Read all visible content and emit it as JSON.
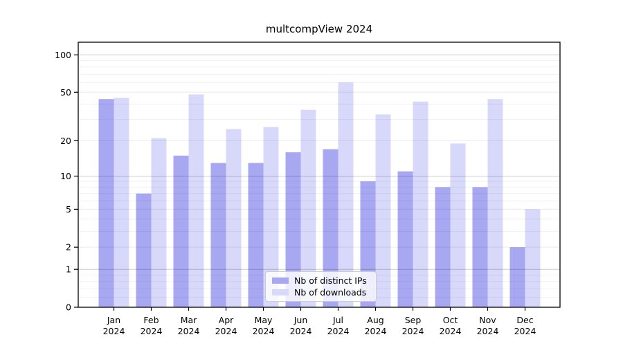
{
  "chart_data": {
    "type": "bar",
    "title": "multcompView 2024",
    "categories": [
      "Jan",
      "Feb",
      "Mar",
      "Apr",
      "May",
      "Jun",
      "Jul",
      "Aug",
      "Sep",
      "Oct",
      "Nov",
      "Dec"
    ],
    "year_label": "2024",
    "series": [
      {
        "name": "Nb of distinct IPs",
        "color": "#a8a8f2",
        "values": [
          44,
          7,
          15,
          13,
          13,
          16,
          17,
          9,
          11,
          8,
          8,
          2
        ]
      },
      {
        "name": "Nb of downloads",
        "color": "#d8d8fa",
        "values": [
          45,
          21,
          48,
          25,
          26,
          36,
          60,
          33,
          42,
          19,
          44,
          5
        ]
      }
    ],
    "xlabel": "",
    "ylabel": "",
    "yscale": "log1p",
    "ylim": [
      0,
      126
    ],
    "yticks": [
      100,
      50,
      20,
      10,
      5,
      2,
      1,
      0
    ],
    "grid": "on",
    "legend_position": "lower center",
    "axis_color": "#000000",
    "tick_label_color": "#000000"
  }
}
